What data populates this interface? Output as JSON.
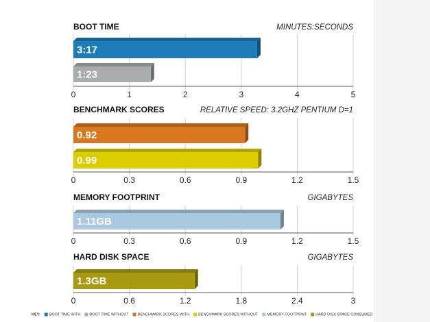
{
  "chart_data": [
    {
      "type": "bar",
      "title": "BOOT TIME",
      "subtitle": "MINUTES:SECONDS",
      "series": [
        {
          "name": "BOOT TIME WITH",
          "color": "#1d7db8",
          "values": [
            3.2833
          ],
          "value_labels": [
            "3:17"
          ]
        },
        {
          "name": "BOOT TIME WITHOUT",
          "color": "#a9acad",
          "values": [
            1.3833
          ],
          "value_labels": [
            "1:23"
          ]
        }
      ],
      "xlim": [
        0,
        5
      ],
      "xticks": [
        0,
        1,
        2,
        3,
        4,
        5
      ],
      "grid": true
    },
    {
      "type": "bar",
      "title": "BENCHMARK SCORES",
      "subtitle": "RELATIVE SPEED: 3.2GHZ PENTIUM D=1",
      "series": [
        {
          "name": "BENCHMARK SCORES WITH",
          "color": "#d9771e",
          "values": [
            0.92
          ]
        },
        {
          "name": "BENCHMARK SCORES WITHOUT",
          "color": "#dccd00",
          "values": [
            0.99
          ]
        }
      ],
      "xlim": [
        0,
        1.5
      ],
      "xticks": [
        0,
        0.3,
        0.6,
        0.9,
        1.2,
        1.5
      ],
      "grid": true
    },
    {
      "type": "bar",
      "title": "MEMORY FOOTPRINT",
      "subtitle": "GIGABYTES",
      "series": [
        {
          "name": "MEMORY FOOTPRINT",
          "color": "#a8c9e0",
          "values": [
            1.11
          ],
          "value_labels": [
            "1.11GB"
          ]
        }
      ],
      "xlim": [
        0,
        1.5
      ],
      "xticks": [
        0,
        0.3,
        0.6,
        0.9,
        1.2,
        1.5
      ],
      "grid": true
    },
    {
      "type": "bar",
      "title": "HARD DISK SPACE",
      "subtitle": "GIGABYTES",
      "series": [
        {
          "name": "HARD DISK SPACE CONSUMED",
          "color": "#a79a10",
          "values": [
            1.3
          ],
          "value_labels": [
            "1.3GB"
          ]
        }
      ],
      "xlim": [
        0,
        3
      ],
      "xticks": [
        0,
        0.6,
        1.2,
        1.8,
        2.4,
        3
      ],
      "grid": true
    },
    {
      "type": "legend",
      "title": "KEY:"
    }
  ]
}
